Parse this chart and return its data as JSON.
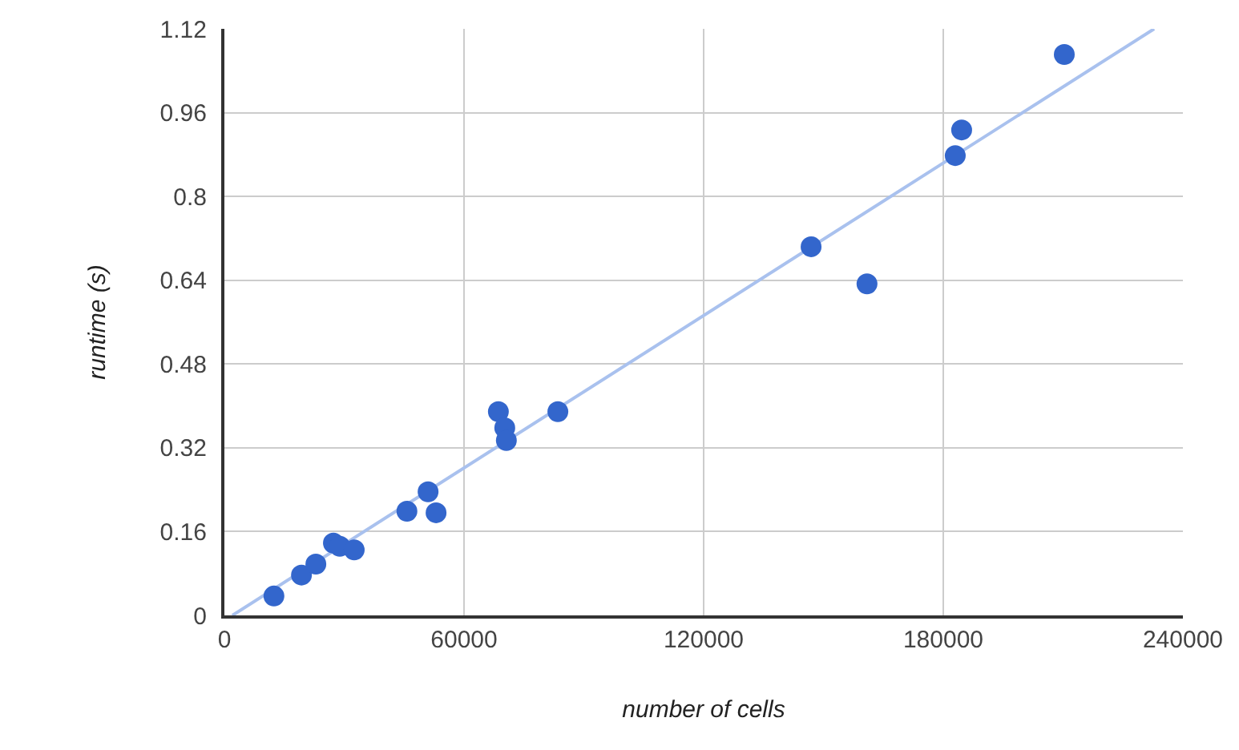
{
  "chart_data": {
    "type": "scatter",
    "xlabel": "number of cells",
    "ylabel": "runtime (s)",
    "xlim": [
      0,
      240000
    ],
    "xticks": [
      0,
      60000,
      120000,
      180000,
      240000
    ],
    "ylim": [
      0,
      1.12
    ],
    "yticks": [
      0,
      0.16,
      0.32,
      0.48,
      0.64,
      0.8,
      0.96,
      1.12
    ],
    "grid": true,
    "series": [
      {
        "type": "line",
        "color": "#a9c1ee",
        "x": [
          2000,
          232800
        ],
        "values": [
          0,
          1.12
        ]
      },
      {
        "marker": "circle",
        "color": "#3366cc",
        "x": [
          12400,
          19300,
          22900,
          27300,
          28900,
          32500,
          45700,
          51000,
          53000,
          68600,
          70200,
          70600,
          83500,
          146900,
          160900,
          183000,
          184600,
          210300
        ],
        "values": [
          0.037,
          0.077,
          0.098,
          0.138,
          0.132,
          0.125,
          0.199,
          0.236,
          0.196,
          0.389,
          0.358,
          0.334,
          0.389,
          0.704,
          0.633,
          0.878,
          0.927,
          1.071
        ]
      }
    ]
  }
}
